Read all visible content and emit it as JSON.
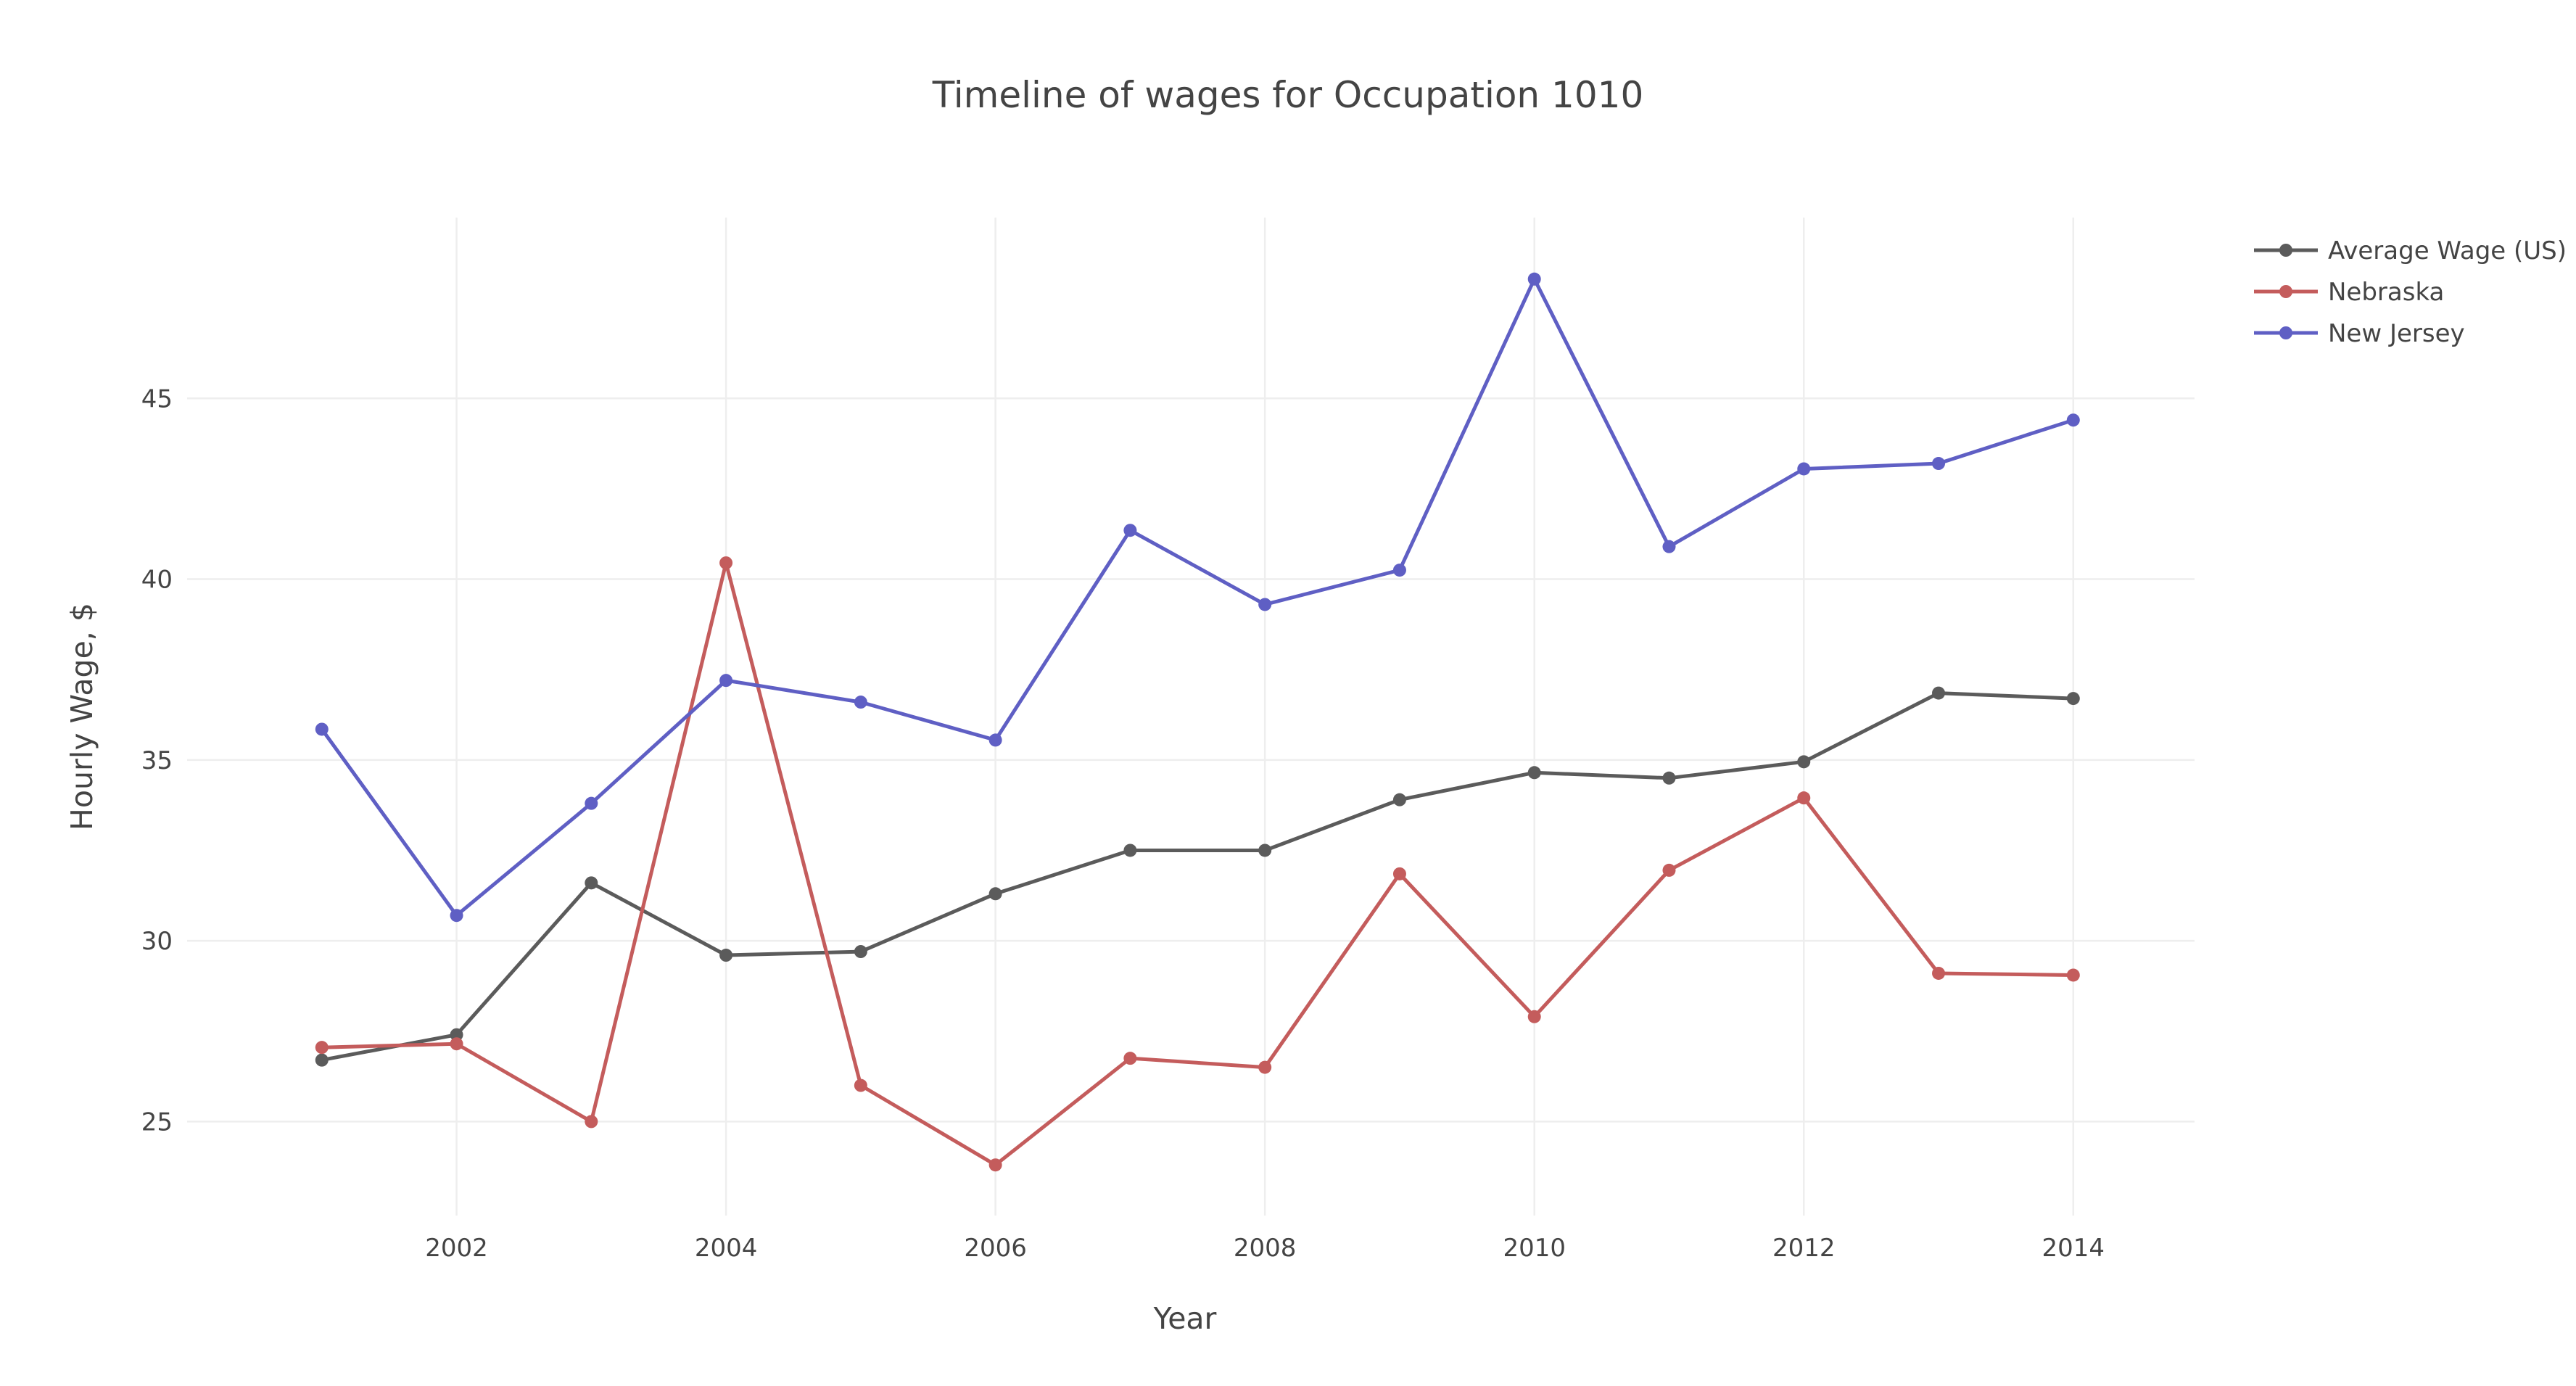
{
  "chart_data": {
    "type": "line",
    "title": "Timeline of wages for Occupation 1010",
    "xlabel": "Year",
    "ylabel": "Hourly Wage, $",
    "x": [
      2001,
      2002,
      2003,
      2004,
      2005,
      2006,
      2007,
      2008,
      2009,
      2010,
      2011,
      2012,
      2013,
      2014
    ],
    "xticks": [
      2002,
      2004,
      2006,
      2008,
      2010,
      2012,
      2014
    ],
    "yticks": [
      25,
      30,
      35,
      40,
      45
    ],
    "xlim": [
      2000.0,
      2014.9
    ],
    "ylim": [
      22.4,
      50.0
    ],
    "grid": true,
    "legend_position": "top-right",
    "series": [
      {
        "name": "Average Wage (US)",
        "color": "#5b5b5b",
        "values": [
          26.7,
          27.4,
          31.6,
          29.6,
          29.7,
          31.3,
          32.5,
          32.5,
          33.9,
          34.65,
          34.5,
          34.95,
          36.85,
          36.7
        ]
      },
      {
        "name": "Nebraska",
        "color": "#c45c5c",
        "values": [
          27.05,
          27.15,
          25.0,
          40.45,
          26.0,
          23.8,
          26.75,
          26.5,
          31.85,
          27.9,
          31.95,
          33.95,
          29.1,
          29.05
        ]
      },
      {
        "name": "New Jersey",
        "color": "#5f5fc4",
        "values": [
          35.85,
          30.7,
          33.8,
          37.2,
          36.6,
          35.55,
          41.35,
          39.3,
          40.25,
          48.3,
          40.9,
          43.05,
          43.2,
          44.4
        ]
      }
    ]
  }
}
